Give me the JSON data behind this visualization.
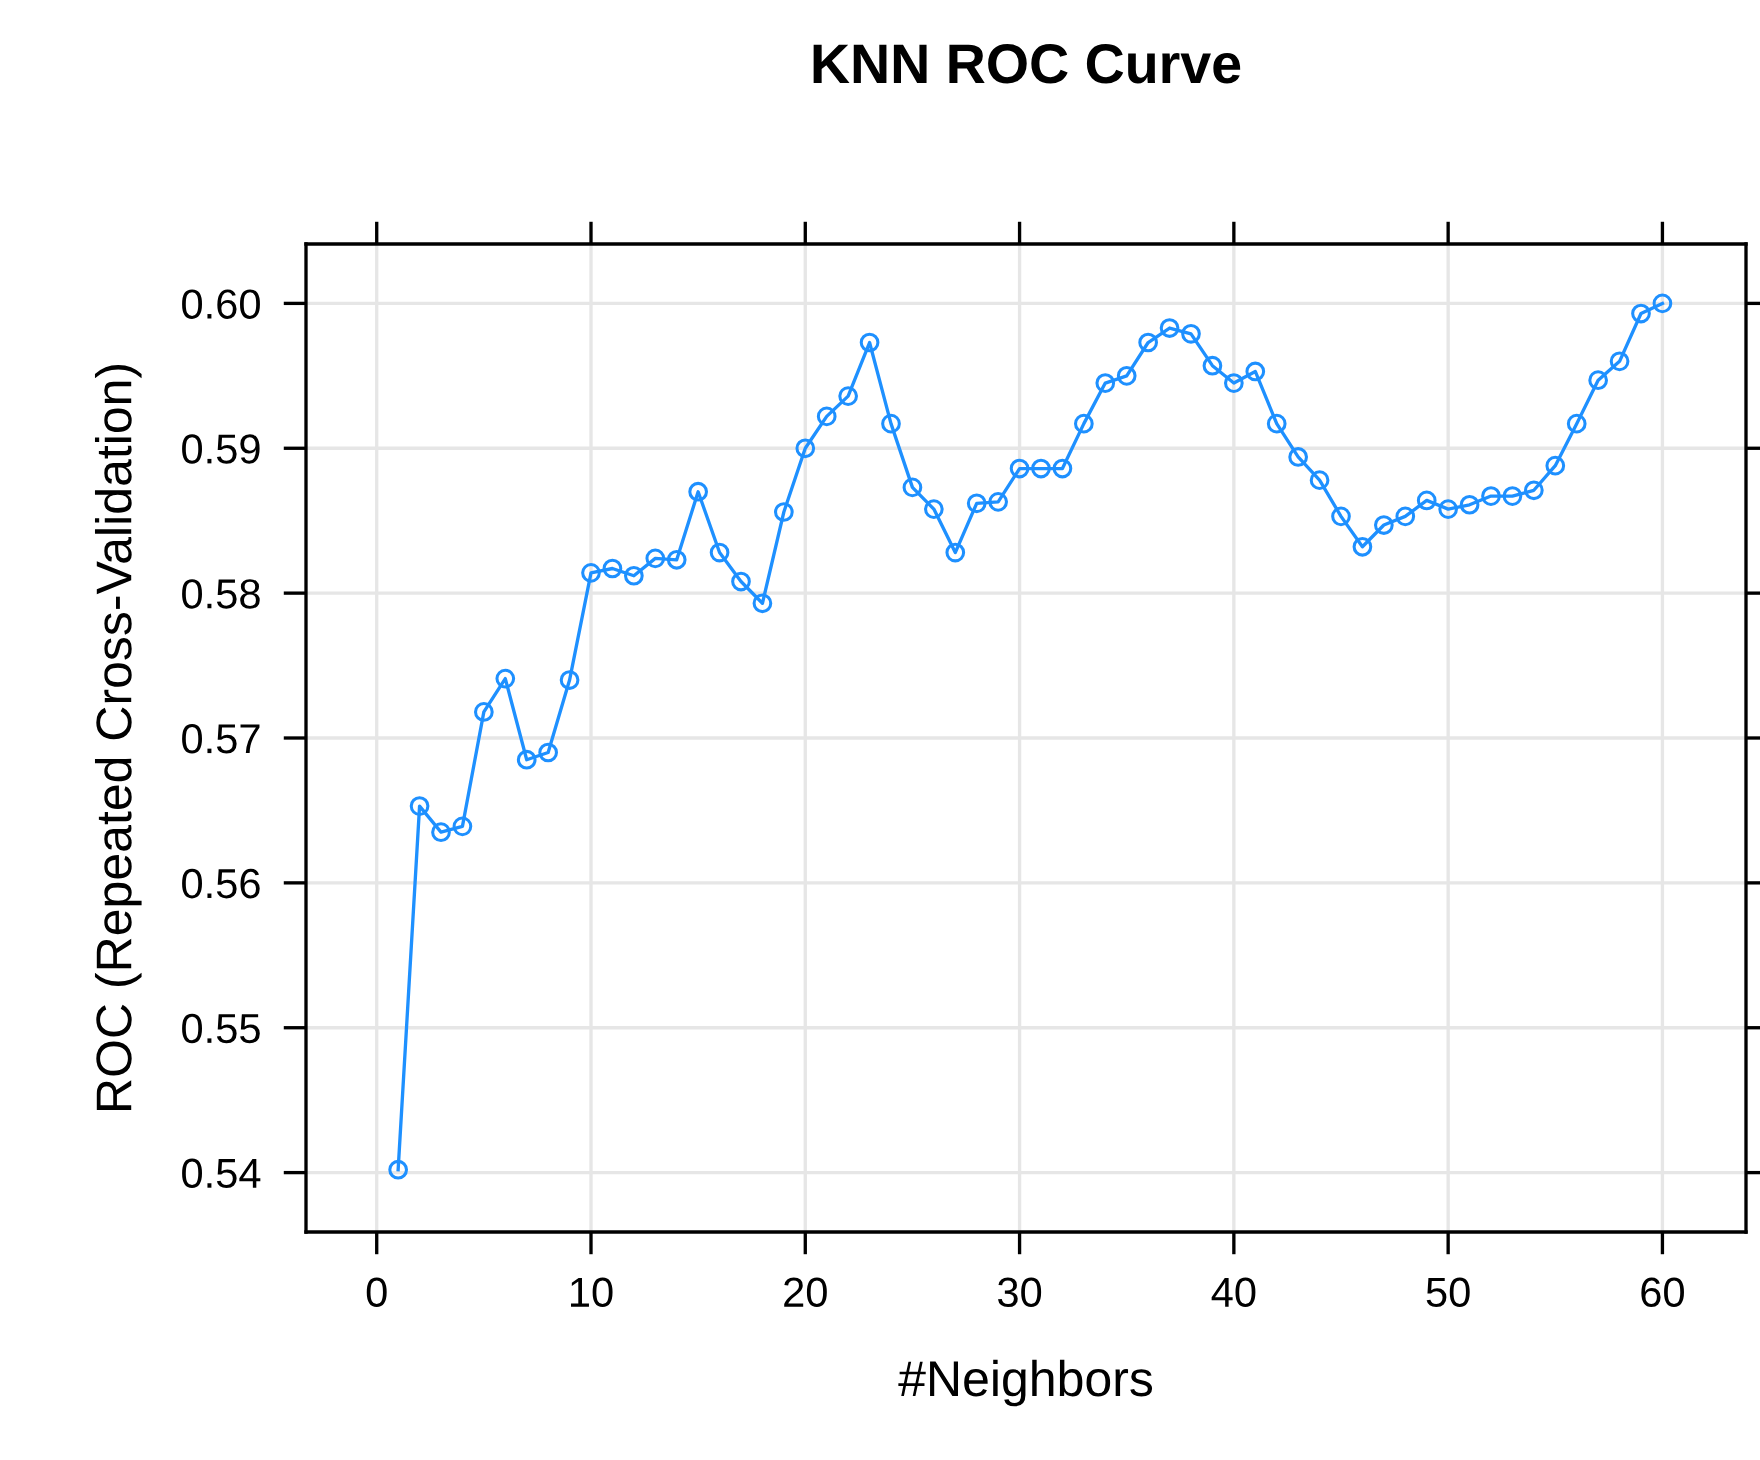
{
  "chart_data": {
    "type": "line",
    "title": "KNN ROC Curve",
    "xlabel": "#Neighbors",
    "ylabel": "ROC (Repeated Cross-Validation)",
    "x": [
      1,
      2,
      3,
      4,
      5,
      6,
      7,
      8,
      9,
      10,
      11,
      12,
      13,
      14,
      15,
      16,
      17,
      18,
      19,
      20,
      21,
      22,
      23,
      24,
      25,
      26,
      27,
      28,
      29,
      30,
      31,
      32,
      33,
      34,
      35,
      36,
      37,
      38,
      39,
      40,
      41,
      42,
      43,
      44,
      45,
      46,
      47,
      48,
      49,
      50,
      51,
      52,
      53,
      54,
      55,
      56,
      57,
      58,
      59,
      60
    ],
    "series": [
      {
        "color": "#1e90ff",
        "values": [
          0.5402,
          0.5653,
          0.5635,
          0.5639,
          0.5718,
          0.5741,
          0.5685,
          0.569,
          0.574,
          0.5814,
          0.5817,
          0.5812,
          0.5824,
          0.5823,
          0.587,
          0.5828,
          0.5808,
          0.5793,
          0.5856,
          0.59,
          0.5922,
          0.5936,
          0.5973,
          0.5917,
          0.5873,
          0.5858,
          0.5828,
          0.5862,
          0.5863,
          0.5886,
          0.5886,
          0.5886,
          0.5917,
          0.5945,
          0.595,
          0.5973,
          0.5983,
          0.5979,
          0.5957,
          0.5945,
          0.5953,
          0.5917,
          0.5894,
          0.5878,
          0.5853,
          0.5832,
          0.5847,
          0.5853,
          0.5864,
          0.5858,
          0.5861,
          0.5867,
          0.5867,
          0.5871,
          0.5888,
          0.5917,
          0.5947,
          0.596,
          0.5993,
          0.6
        ]
      }
    ],
    "xlim": [
      -3.3,
      63.9
    ],
    "xticks": [
      0,
      10,
      20,
      30,
      40,
      50,
      60
    ],
    "ylim": [
      0.5359,
      0.6041
    ],
    "yticks": [
      0.54,
      0.55,
      0.56,
      0.57,
      0.58,
      0.59,
      {
        "value": 0.6,
        "label": "0.60"
      }
    ],
    "grid": true,
    "marker": "circle",
    "line_style": "solid"
  }
}
